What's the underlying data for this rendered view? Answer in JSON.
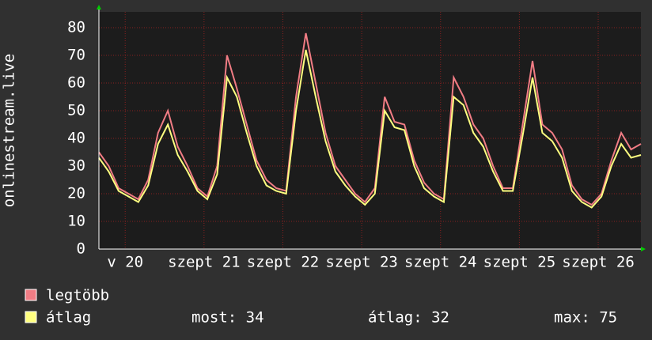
{
  "chart_data": {
    "type": "line",
    "ylabel": "onlinestream.live",
    "x": [
      0,
      3,
      6,
      9,
      12,
      15,
      18,
      21,
      24,
      27,
      30,
      33,
      36,
      39,
      42,
      45,
      48,
      51,
      54,
      57,
      60,
      63,
      66,
      69,
      72,
      75,
      78,
      81,
      84,
      87,
      90,
      93,
      96,
      99,
      102,
      105,
      108,
      111,
      114,
      117,
      120,
      123,
      126,
      129,
      132,
      135,
      138,
      141,
      144,
      147,
      150,
      153,
      156,
      159,
      162,
      165
    ],
    "xlim": [
      0,
      165
    ],
    "xticks": [
      {
        "value": 8,
        "label": "v 20"
      },
      {
        "value": 32,
        "label": "szept 21"
      },
      {
        "value": 56,
        "label": "szept 22"
      },
      {
        "value": 80,
        "label": "szept 23"
      },
      {
        "value": 104,
        "label": "szept 24"
      },
      {
        "value": 128,
        "label": "szept 25"
      },
      {
        "value": 152,
        "label": "szept 26"
      }
    ],
    "ylim": [
      0,
      85
    ],
    "yticks": [
      0,
      10,
      20,
      30,
      40,
      50,
      60,
      70,
      80
    ],
    "grid": true,
    "series": [
      {
        "name": "legtöbb",
        "color": "#f07c84",
        "values": [
          35,
          30,
          22,
          20,
          18,
          25,
          42,
          50,
          37,
          30,
          22,
          19,
          30,
          70,
          58,
          45,
          32,
          25,
          22,
          21,
          55,
          78,
          60,
          42,
          30,
          25,
          20,
          17,
          22,
          55,
          46,
          45,
          32,
          24,
          20,
          18,
          62,
          55,
          45,
          40,
          30,
          22,
          22,
          45,
          68,
          45,
          42,
          36,
          23,
          18,
          16,
          20,
          32,
          42,
          36,
          38
        ]
      },
      {
        "name": "átlag",
        "color": "#ffff80",
        "values": [
          33,
          28,
          21,
          19,
          17,
          23,
          38,
          45,
          34,
          28,
          21,
          18,
          27,
          62,
          55,
          42,
          30,
          23,
          21,
          20,
          50,
          72,
          55,
          39,
          28,
          23,
          19,
          16,
          20,
          50,
          44,
          43,
          30,
          22,
          19,
          17,
          55,
          52,
          42,
          37,
          28,
          21,
          21,
          41,
          62,
          42,
          39,
          33,
          21,
          17,
          15,
          19,
          30,
          38,
          33,
          34
        ]
      }
    ],
    "stats": [
      "most: 34",
      "átlag: 32",
      "max: 75"
    ]
  }
}
